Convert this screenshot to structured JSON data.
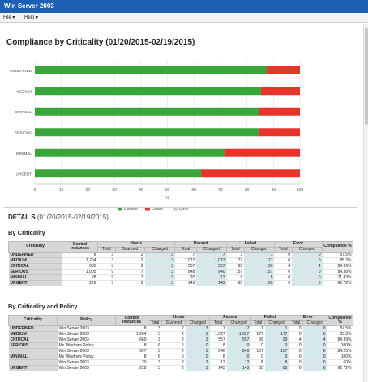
{
  "window": {
    "title": "Win Server 2003"
  },
  "menu": {
    "file": "File ▾",
    "help": "Help ▾"
  },
  "page_title": "Compliance by Criticality (01/20/2015-02/19/2015)",
  "details": {
    "label": "DETAILS",
    "range": "(01/20/2015-02/19/2015)"
  },
  "sections": {
    "by_criticality": "By Criticality",
    "by_policy": "By Criticality and Policy"
  },
  "colors": {
    "passed": "#3aa53a",
    "failed": "#e8352b",
    "error": "#cccccc"
  },
  "chart_data": {
    "type": "bar",
    "orientation": "horizontal",
    "stacked": true,
    "categories": [
      "UNDEFINED",
      "MEDIUM",
      "CRITICAL",
      "SERIOUS",
      "MINIMAL",
      "URGENT"
    ],
    "series": [
      {
        "name": "Passed",
        "values": [
          87.5,
          85.3,
          84.39,
          84.38,
          71.43,
          62.72
        ]
      },
      {
        "name": "Failed",
        "values": [
          12.5,
          14.7,
          15.61,
          15.62,
          28.57,
          37.28
        ]
      },
      {
        "name": "Error",
        "values": [
          0,
          0,
          0,
          0,
          0,
          0
        ]
      }
    ],
    "xlim": [
      0,
      100
    ],
    "xticks": [
      "0",
      "10",
      "20",
      "30",
      "40",
      "50",
      "60",
      "70",
      "80",
      "90",
      "100"
    ],
    "xlabel": "%",
    "grid": true,
    "legend": "bottom"
  },
  "headers": {
    "criticality": "Criticality",
    "policy": "Policy",
    "control_instances": "Control instances",
    "hosts": "Hosts",
    "passed": "Passed",
    "failed": "Failed",
    "error": "Error",
    "compliance": "Compliance %",
    "total": "Total",
    "scanned": "Scanned",
    "changed": "Changed"
  },
  "table1": [
    [
      "UNDEFINED",
      "8",
      "3",
      "2",
      "3",
      "7",
      "7",
      "1",
      "1",
      "0",
      "0",
      "87.5%"
    ],
    [
      "MEDIUM",
      "1,204",
      "3",
      "2",
      "3",
      "1,027",
      "1,027",
      "177",
      "177",
      "0",
      "0",
      "85.3%"
    ],
    [
      "CRITICAL",
      "660",
      "3",
      "2",
      "3",
      "557",
      "557",
      "99",
      "99",
      "4",
      "4",
      "84.39%"
    ],
    [
      "SERIOUS",
      "1,905",
      "9",
      "7",
      "3",
      "848",
      "840",
      "157",
      "157",
      "0",
      "0",
      "84.38%"
    ],
    [
      "MINIMAL",
      "28",
      "9",
      "7",
      "3",
      "20",
      "12",
      "8",
      "8",
      "0",
      "0",
      "71.43%"
    ],
    [
      "URGENT",
      "228",
      "3",
      "2",
      "3",
      "143",
      "143",
      "85",
      "85",
      "0",
      "0",
      "62.72%"
    ]
  ],
  "table2": [
    [
      "UNDEFINED",
      "Win Server 2003",
      "8",
      "3",
      "2",
      "3",
      "7",
      "7",
      "1",
      "1",
      "0",
      "0",
      "87.5%"
    ],
    [
      "MEDIUM",
      "Win Server 2003",
      "1,204",
      "3",
      "2",
      "3",
      "1,027",
      "1,027",
      "177",
      "177",
      "0",
      "0",
      "85.3%"
    ],
    [
      "CRITICAL",
      "Win Server 2003",
      "660",
      "3",
      "2",
      "3",
      "557",
      "557",
      "99",
      "99",
      "4",
      "4",
      "84.39%"
    ],
    [
      "SERIOUS",
      "Ms Windows Policy",
      "8",
      "6",
      "5",
      "0",
      "8",
      "0",
      "0",
      "0",
      "0",
      "0",
      "100%"
    ],
    [
      "",
      "Win Server 2003",
      "997",
      "3",
      "2",
      "3",
      "840",
      "840",
      "157",
      "157",
      "0",
      "0",
      "84.25%"
    ],
    [
      "MINIMAL",
      "Ms Windows Policy",
      "8",
      "6",
      "5",
      "0",
      "8",
      "0",
      "0",
      "0",
      "0",
      "0",
      "100%"
    ],
    [
      "",
      "Win Server 2003",
      "20",
      "3",
      "2",
      "3",
      "12",
      "12",
      "8",
      "8",
      "0",
      "0",
      "60%"
    ],
    [
      "URGENT",
      "Win Server 2003",
      "228",
      "3",
      "2",
      "3",
      "143",
      "143",
      "85",
      "85",
      "0",
      "0",
      "62.72%"
    ]
  ]
}
